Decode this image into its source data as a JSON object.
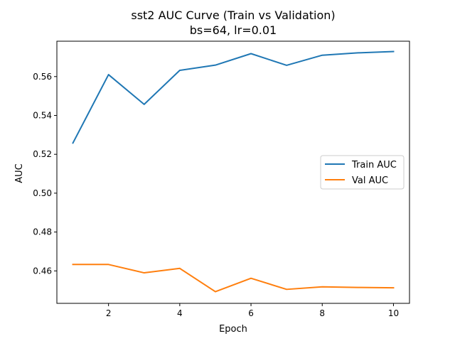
{
  "chart_data": {
    "type": "line",
    "title": "sst2 AUC Curve (Train vs Validation)",
    "subtitle": "bs=64, lr=0.01",
    "xlabel": "Epoch",
    "ylabel": "AUC",
    "x": [
      1,
      2,
      3,
      4,
      5,
      6,
      7,
      8,
      9,
      10
    ],
    "xlim": [
      0.55,
      10.45
    ],
    "ylim": [
      0.4433,
      0.5782
    ],
    "xticks": [
      2,
      4,
      6,
      8,
      10
    ],
    "xtick_labels": [
      "2",
      "4",
      "6",
      "8",
      "10"
    ],
    "yticks": [
      0.46,
      0.48,
      0.5,
      0.52,
      0.54,
      0.56
    ],
    "ytick_labels": [
      "0.46",
      "0.48",
      "0.50",
      "0.52",
      "0.54",
      "0.56"
    ],
    "grid": false,
    "legend_position": "center-right",
    "series": [
      {
        "name": "Train AUC",
        "color": "#1f77b4",
        "values": [
          0.5258,
          0.561,
          0.5457,
          0.5632,
          0.5659,
          0.5718,
          0.5658,
          0.571,
          0.5722,
          0.5729
        ]
      },
      {
        "name": "Val AUC",
        "color": "#ff7f0e",
        "values": [
          0.4633,
          0.4633,
          0.459,
          0.4613,
          0.4493,
          0.4562,
          0.4505,
          0.4518,
          0.4515,
          0.4513
        ]
      }
    ]
  }
}
